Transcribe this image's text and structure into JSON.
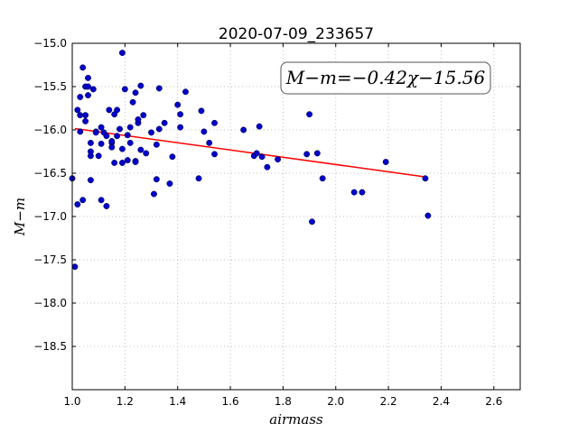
{
  "chart_data": {
    "type": "scatter",
    "title": "2020-07-09_233657",
    "xlabel": "airmass",
    "ylabel": "M−m",
    "xlim": [
      1.0,
      2.7
    ],
    "ylim": [
      -15.0,
      -19.0
    ],
    "y_inverted": true,
    "grid": true,
    "x_ticks": [
      "1.0",
      "1.2",
      "1.4",
      "1.6",
      "1.8",
      "2.0",
      "2.2",
      "2.4",
      "2.6"
    ],
    "x_tick_values": [
      1.0,
      1.2,
      1.4,
      1.6,
      1.8,
      2.0,
      2.2,
      2.4,
      2.6
    ],
    "y_ticks": [
      "−15.0",
      "−15.5",
      "−16.0",
      "−16.5",
      "−17.0",
      "−17.5",
      "−18.0",
      "−18.5"
    ],
    "y_tick_values": [
      -15.0,
      -15.5,
      -16.0,
      -16.5,
      -17.0,
      -17.5,
      -18.0,
      -18.5
    ],
    "annotation": "M−m=−0.42χ−15.56",
    "marker_color": "#0000c8",
    "fit_color": "#ff0000",
    "fit": {
      "slope": -0.42,
      "intercept": -15.56,
      "x_range": [
        1.01,
        2.34
      ]
    },
    "points": [
      [
        1.0,
        -16.56
      ],
      [
        1.01,
        -17.58
      ],
      [
        1.02,
        -15.77
      ],
      [
        1.02,
        -16.86
      ],
      [
        1.03,
        -15.83
      ],
      [
        1.03,
        -15.62
      ],
      [
        1.03,
        -16.02
      ],
      [
        1.04,
        -15.28
      ],
      [
        1.04,
        -16.81
      ],
      [
        1.05,
        -15.5
      ],
      [
        1.05,
        -15.83
      ],
      [
        1.05,
        -15.9
      ],
      [
        1.06,
        -15.6
      ],
      [
        1.06,
        -15.5
      ],
      [
        1.06,
        -15.4
      ],
      [
        1.07,
        -16.3
      ],
      [
        1.07,
        -16.25
      ],
      [
        1.07,
        -16.15
      ],
      [
        1.07,
        -16.58
      ],
      [
        1.08,
        -15.53
      ],
      [
        1.09,
        -16.02
      ],
      [
        1.09,
        -16.03
      ],
      [
        1.1,
        -16.3
      ],
      [
        1.11,
        -16.16
      ],
      [
        1.11,
        -15.97
      ],
      [
        1.11,
        -16.81
      ],
      [
        1.12,
        -16.03
      ],
      [
        1.13,
        -16.07
      ],
      [
        1.13,
        -16.88
      ],
      [
        1.14,
        -15.77
      ],
      [
        1.15,
        -16.15
      ],
      [
        1.15,
        -16.2
      ],
      [
        1.15,
        -16.13
      ],
      [
        1.16,
        -16.38
      ],
      [
        1.16,
        -15.82
      ],
      [
        1.17,
        -16.07
      ],
      [
        1.17,
        -15.77
      ],
      [
        1.18,
        -15.99
      ],
      [
        1.19,
        -15.11
      ],
      [
        1.19,
        -16.38
      ],
      [
        1.19,
        -16.22
      ],
      [
        1.2,
        -15.53
      ],
      [
        1.21,
        -16.06
      ],
      [
        1.21,
        -16.35
      ],
      [
        1.22,
        -16.15
      ],
      [
        1.22,
        -15.97
      ],
      [
        1.23,
        -15.68
      ],
      [
        1.24,
        -15.57
      ],
      [
        1.24,
        -16.36
      ],
      [
        1.24,
        -16.37
      ],
      [
        1.25,
        -15.92
      ],
      [
        1.25,
        -15.88
      ],
      [
        1.26,
        -15.49
      ],
      [
        1.26,
        -16.23
      ],
      [
        1.27,
        -15.83
      ],
      [
        1.28,
        -16.27
      ],
      [
        1.3,
        -16.03
      ],
      [
        1.31,
        -16.74
      ],
      [
        1.32,
        -16.57
      ],
      [
        1.32,
        -16.17
      ],
      [
        1.33,
        -15.52
      ],
      [
        1.33,
        -15.99
      ],
      [
        1.35,
        -15.92
      ],
      [
        1.37,
        -16.62
      ],
      [
        1.38,
        -16.31
      ],
      [
        1.4,
        -15.71
      ],
      [
        1.41,
        -15.82
      ],
      [
        1.41,
        -15.97
      ],
      [
        1.43,
        -15.56
      ],
      [
        1.48,
        -16.56
      ],
      [
        1.49,
        -15.78
      ],
      [
        1.5,
        -16.02
      ],
      [
        1.52,
        -16.15
      ],
      [
        1.54,
        -15.92
      ],
      [
        1.54,
        -16.28
      ],
      [
        1.65,
        -16.0
      ],
      [
        1.69,
        -16.3
      ],
      [
        1.7,
        -16.27
      ],
      [
        1.71,
        -15.96
      ],
      [
        1.72,
        -16.31
      ],
      [
        1.74,
        -16.43
      ],
      [
        1.78,
        -16.34
      ],
      [
        1.89,
        -16.28
      ],
      [
        1.9,
        -15.82
      ],
      [
        1.91,
        -17.06
      ],
      [
        1.93,
        -16.27
      ],
      [
        1.95,
        -16.56
      ],
      [
        2.07,
        -16.72
      ],
      [
        2.1,
        -16.72
      ],
      [
        2.19,
        -16.37
      ],
      [
        2.34,
        -16.56
      ],
      [
        2.35,
        -16.99
      ]
    ]
  }
}
